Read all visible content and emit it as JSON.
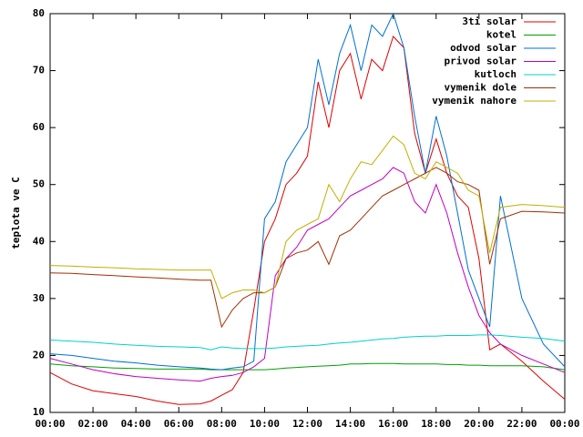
{
  "chart_data": {
    "type": "line",
    "ylabel": "teplota ve C",
    "x": [
      0,
      1,
      2,
      3,
      4,
      5,
      6,
      7,
      7.5,
      8,
      8.5,
      9,
      9.5,
      10,
      10.5,
      11,
      11.5,
      12,
      12.5,
      13,
      13.5,
      14,
      14.5,
      15,
      15.5,
      16,
      16.5,
      17,
      17.5,
      18,
      18.5,
      19,
      19.5,
      20,
      20.5,
      21,
      22,
      23,
      24
    ],
    "xlim": [
      0,
      24
    ],
    "xticks": [
      {
        "value": 0,
        "label": "00:00"
      },
      {
        "value": 2,
        "label": "02:00"
      },
      {
        "value": 4,
        "label": "04:00"
      },
      {
        "value": 6,
        "label": "06:00"
      },
      {
        "value": 8,
        "label": "08:00"
      },
      {
        "value": 10,
        "label": "10:00"
      },
      {
        "value": 12,
        "label": "12:00"
      },
      {
        "value": 14,
        "label": "14:00"
      },
      {
        "value": 16,
        "label": "16:00"
      },
      {
        "value": 18,
        "label": "18:00"
      },
      {
        "value": 20,
        "label": "20:00"
      },
      {
        "value": 22,
        "label": "22:00"
      },
      {
        "value": 24,
        "label": "00:00"
      }
    ],
    "ylim": [
      10,
      80
    ],
    "yticks": [
      10,
      20,
      30,
      40,
      50,
      60,
      70,
      80
    ],
    "grid": false,
    "legend": "top-right",
    "series": [
      {
        "name": "3ti solar",
        "color": "#e00000",
        "values": [
          17,
          15,
          13.8,
          13.3,
          12.8,
          12,
          11.4,
          11.5,
          12,
          13,
          14,
          17,
          28,
          40,
          44,
          50,
          52,
          55,
          68,
          60,
          70,
          73,
          65,
          72,
          70,
          76,
          74,
          59,
          52,
          58,
          52,
          48,
          46,
          37,
          21,
          22,
          19,
          15.5,
          12.3
        ]
      },
      {
        "name": "kotel",
        "color": "#00a000",
        "values": [
          18.5,
          18.2,
          18,
          17.8,
          17.7,
          17.6,
          17.6,
          17.6,
          17.5,
          17.5,
          17.5,
          17.5,
          17.5,
          17.5,
          17.6,
          17.8,
          17.9,
          18,
          18.1,
          18.2,
          18.3,
          18.5,
          18.5,
          18.6,
          18.6,
          18.6,
          18.5,
          18.5,
          18.5,
          18.5,
          18.4,
          18.4,
          18.3,
          18.3,
          18.2,
          18.2,
          18.2,
          18,
          17.5
        ]
      },
      {
        "name": "odvod solar",
        "color": "#0070d0",
        "values": [
          20.3,
          20,
          19.5,
          19,
          18.7,
          18.3,
          18,
          17.8,
          17.6,
          17.5,
          17.8,
          18,
          19,
          44,
          47,
          54,
          57,
          60,
          72,
          64,
          73,
          78,
          70,
          78,
          76,
          80,
          74,
          62,
          52,
          62,
          55,
          45,
          35,
          30,
          25,
          48,
          30,
          22,
          18
        ]
      },
      {
        "name": "privod solar",
        "color": "#c000c0",
        "values": [
          19.5,
          18.5,
          17.5,
          16.8,
          16.3,
          16,
          15.7,
          15.5,
          16,
          16.3,
          16.5,
          17,
          18,
          19.5,
          34,
          37,
          39,
          42,
          43,
          44,
          46,
          48,
          49,
          50,
          51,
          53,
          52,
          47,
          45,
          50,
          45,
          38,
          32,
          27,
          24,
          22,
          20,
          18.5,
          17
        ]
      },
      {
        "name": "kutloch",
        "color": "#00d0d0",
        "values": [
          22.7,
          22.5,
          22.3,
          22,
          21.8,
          21.6,
          21.5,
          21.4,
          21,
          21.5,
          21.3,
          21.2,
          21.2,
          21.2,
          21.3,
          21.5,
          21.6,
          21.7,
          21.8,
          22,
          22.2,
          22.3,
          22.5,
          22.7,
          22.9,
          23,
          23.2,
          23.3,
          23.4,
          23.4,
          23.5,
          23.5,
          23.5,
          23.6,
          23.6,
          23.5,
          23.2,
          23,
          22.5
        ]
      },
      {
        "name": "vymenik dole",
        "color": "#a03000",
        "values": [
          34.5,
          34.4,
          34.2,
          34,
          33.8,
          33.6,
          33.4,
          33.2,
          33.2,
          25,
          28,
          30,
          31,
          31,
          32,
          37,
          38,
          38.5,
          40,
          36,
          41,
          42,
          44,
          46,
          48,
          49,
          50,
          51,
          52,
          53,
          52,
          50.5,
          50,
          49,
          36,
          44,
          45.3,
          45.2,
          45
        ]
      },
      {
        "name": "vymenik nahore",
        "color": "#c0b000",
        "values": [
          35.8,
          35.7,
          35.5,
          35.4,
          35.2,
          35.1,
          35,
          35,
          35,
          30,
          31,
          31.5,
          31.5,
          31,
          32,
          40,
          42,
          43,
          44,
          50,
          47,
          51,
          54,
          53.5,
          56,
          58.5,
          57,
          52,
          51,
          54,
          53,
          52,
          49,
          48,
          38,
          46,
          46.5,
          46.3,
          46
        ]
      }
    ]
  }
}
